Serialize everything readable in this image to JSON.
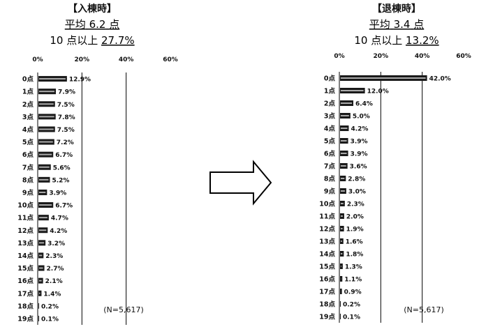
{
  "chart_data": [
    {
      "type": "bar",
      "title": "【入棟時】",
      "subtitle_avg_label": "平均",
      "subtitle_avg_value": "6.2",
      "subtitle_avg_unit": "点",
      "subtitle_ten_label": "10 点以上",
      "subtitle_ten_value": "27.7%",
      "xticks": [
        "0%",
        "20%",
        "40%",
        "60%"
      ],
      "xlim": [
        0,
        60
      ],
      "categories": [
        "0点",
        "1点",
        "2点",
        "3点",
        "4点",
        "5点",
        "6点",
        "7点",
        "8点",
        "9点",
        "10点",
        "11点",
        "12点",
        "13点",
        "14点",
        "15点",
        "16点",
        "17点",
        "18点",
        "19点"
      ],
      "values": [
        12.9,
        7.9,
        7.5,
        7.8,
        7.5,
        7.2,
        6.7,
        5.6,
        5.2,
        3.9,
        6.7,
        4.7,
        4.2,
        3.2,
        2.3,
        2.7,
        2.1,
        1.4,
        0.2,
        0.1
      ],
      "labels": [
        "12.9%",
        "7.9%",
        "7.5%",
        "7.8%",
        "7.5%",
        "7.2%",
        "6.7%",
        "5.6%",
        "5.2%",
        "3.9%",
        "6.7%",
        "4.7%",
        "4.2%",
        "3.2%",
        "2.3%",
        "2.7%",
        "2.1%",
        "1.4%",
        "0.2%",
        "0.1%"
      ],
      "note": "(N=5,617)"
    },
    {
      "type": "bar",
      "title": "【退棟時】",
      "subtitle_avg_label": "平均",
      "subtitle_avg_value": "3.4",
      "subtitle_avg_unit": "点",
      "subtitle_ten_label": "10 点以上",
      "subtitle_ten_value": "13.2%",
      "xticks": [
        "0%",
        "20%",
        "40%",
        "60%"
      ],
      "xlim": [
        0,
        60
      ],
      "categories": [
        "0点",
        "1点",
        "2点",
        "3点",
        "4点",
        "5点",
        "6点",
        "7点",
        "8点",
        "9点",
        "10点",
        "11点",
        "12点",
        "13点",
        "14点",
        "15点",
        "16点",
        "17点",
        "18点",
        "19点"
      ],
      "values": [
        42.0,
        12.0,
        6.4,
        5.0,
        4.2,
        3.9,
        3.9,
        3.6,
        2.8,
        3.0,
        2.3,
        2.0,
        1.9,
        1.6,
        1.8,
        1.3,
        1.1,
        0.9,
        0.2,
        0.1
      ],
      "labels": [
        "42.0%",
        "12.0%",
        "6.4%",
        "5.0%",
        "4.2%",
        "3.9%",
        "3.9%",
        "3.6%",
        "2.8%",
        "3.0%",
        "2.3%",
        "2.0%",
        "1.9%",
        "1.6%",
        "1.8%",
        "1.3%",
        "1.1%",
        "0.9%",
        "0.2%",
        "0.1%"
      ],
      "note": "(N=5,617)"
    }
  ],
  "colors": {
    "bar": "#1a1a1a",
    "axis": "#000000",
    "arrow": "#000000"
  }
}
